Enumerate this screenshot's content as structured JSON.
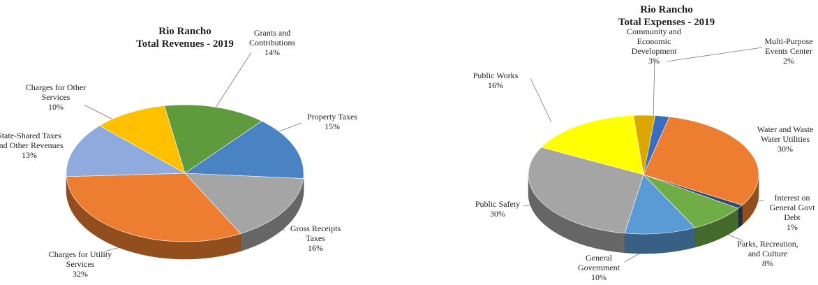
{
  "chart_data": [
    {
      "type": "pie3d",
      "title": "Rio Rancho",
      "subtitle": "Total Revenues - 2019",
      "categories": [
        "Grants and Contributions",
        "Property Taxes",
        "Gross Receipts Taxes",
        "Charges for Utility Services",
        "State-Shared Taxes and Other Revenues",
        "Charges for Other Services"
      ],
      "values": [
        14,
        15,
        16,
        32,
        13,
        10
      ],
      "value_labels": [
        "14%",
        "15%",
        "16%",
        "32%",
        "13%",
        "10%"
      ],
      "colors": [
        "#5f9a3c",
        "#4a83c4",
        "#a5a5a5",
        "#ed7d31",
        "#8faadc",
        "#ffc000"
      ]
    },
    {
      "type": "pie3d",
      "title": "Rio Rancho",
      "subtitle": "Total Expenses - 2019",
      "categories": [
        "Community and Economic Development",
        "Multi-Purpose Events Center",
        "Water and Waste Water Utilities",
        "Interest on General Govt Debt",
        "Parks, Recreation, and Culture",
        "General Government",
        "Public Safety",
        "Public Works"
      ],
      "values": [
        3,
        2,
        30,
        1,
        8,
        10,
        30,
        16
      ],
      "value_labels": [
        "3%",
        "2%",
        "30%",
        "1%",
        "8%",
        "10%",
        "30%",
        "16%"
      ],
      "colors": [
        "#dca600",
        "#3b6dbf",
        "#ed7d31",
        "#2e4a6e",
        "#70ad47",
        "#5b9bd5",
        "#a5a5a5",
        "#ffff00"
      ]
    }
  ]
}
